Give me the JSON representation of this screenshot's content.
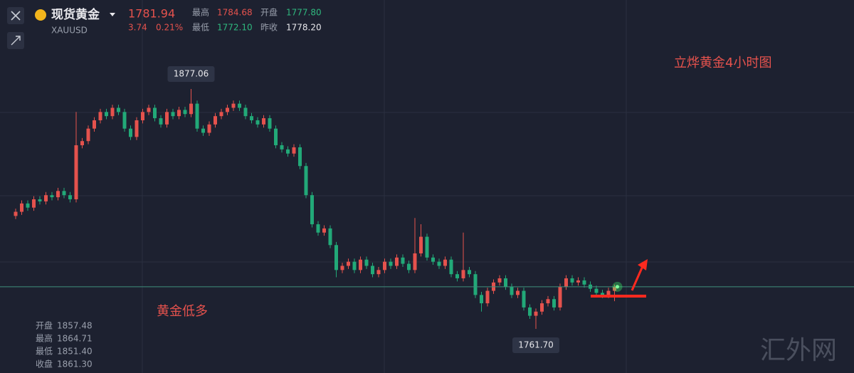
{
  "header": {
    "name": "现货黄金",
    "symbol": "XAUUSD",
    "price": "1781.94",
    "change": "3.74",
    "change_pct": "0.21%",
    "stats": [
      {
        "label": "最高",
        "value": "1784.68"
      },
      {
        "label": "开盘",
        "value": "1777.80"
      },
      {
        "label": "最低",
        "value": "1772.10"
      },
      {
        "label": "昨收",
        "value": "1778.20"
      }
    ]
  },
  "chart_data": {
    "type": "candlestick",
    "title": "立烨黄金4小时图",
    "annotation": "黄金低多",
    "up_color": "#e5524d",
    "down_color": "#22a978",
    "extreme_labels": [
      "1877.06",
      "1761.70"
    ],
    "candles": [
      [
        1816,
        1819.5,
        1814.5,
        1818
      ],
      [
        1818,
        1823.5,
        1816.5,
        1822
      ],
      [
        1822,
        1823.5,
        1818.5,
        1820
      ],
      [
        1820,
        1825.5,
        1818.5,
        1824
      ],
      [
        1824,
        1825.5,
        1821.5,
        1823
      ],
      [
        1823,
        1827.5,
        1821.5,
        1826
      ],
      [
        1826,
        1827.5,
        1823.5,
        1825
      ],
      [
        1825,
        1829.5,
        1823.5,
        1828
      ],
      [
        1828,
        1829.5,
        1824.5,
        1826
      ],
      [
        1826,
        1827.5,
        1822.5,
        1824
      ],
      [
        1824,
        1866,
        1822.5,
        1850
      ],
      [
        1850,
        1853.5,
        1848.5,
        1852
      ],
      [
        1852,
        1859.5,
        1850.5,
        1858
      ],
      [
        1858,
        1863.5,
        1856.5,
        1862
      ],
      [
        1862,
        1867.5,
        1860.5,
        1866
      ],
      [
        1866,
        1867.5,
        1862.5,
        1864
      ],
      [
        1864,
        1869.5,
        1862.5,
        1868
      ],
      [
        1868,
        1869.5,
        1864.5,
        1866
      ],
      [
        1866,
        1867.5,
        1856.5,
        1858
      ],
      [
        1858,
        1859.5,
        1852.5,
        1854
      ],
      [
        1854,
        1863.5,
        1852.5,
        1862
      ],
      [
        1862,
        1867.5,
        1860.5,
        1866
      ],
      [
        1866,
        1869.5,
        1864.5,
        1868
      ],
      [
        1868,
        1869.5,
        1861.5,
        1863
      ],
      [
        1863,
        1864.5,
        1858.5,
        1860
      ],
      [
        1860,
        1867.5,
        1858.5,
        1866
      ],
      [
        1866,
        1867.5,
        1862.5,
        1864
      ],
      [
        1864,
        1868.5,
        1862.5,
        1867
      ],
      [
        1867,
        1868.5,
        1863.5,
        1865
      ],
      [
        1865,
        1877.06,
        1863.5,
        1870
      ],
      [
        1870,
        1871.5,
        1856.5,
        1858
      ],
      [
        1858,
        1859.5,
        1854.5,
        1856
      ],
      [
        1856,
        1861.5,
        1854.5,
        1860
      ],
      [
        1860,
        1865.5,
        1858.5,
        1864
      ],
      [
        1864,
        1867.5,
        1862.5,
        1866
      ],
      [
        1866,
        1869.5,
        1864.5,
        1868
      ],
      [
        1868,
        1871.5,
        1866.5,
        1870
      ],
      [
        1870,
        1871.5,
        1866.5,
        1868
      ],
      [
        1868,
        1869.5,
        1862.5,
        1864
      ],
      [
        1864,
        1865.5,
        1860.5,
        1862
      ],
      [
        1862,
        1863.5,
        1858.5,
        1860
      ],
      [
        1860,
        1864.5,
        1858.5,
        1863
      ],
      [
        1863,
        1864.5,
        1856.5,
        1858
      ],
      [
        1858,
        1859.5,
        1848.5,
        1850
      ],
      [
        1850,
        1851.5,
        1846.5,
        1848
      ],
      [
        1848,
        1849.5,
        1844.5,
        1846
      ],
      [
        1846,
        1850.5,
        1844.5,
        1849
      ],
      [
        1849,
        1850.5,
        1838.5,
        1840
      ],
      [
        1840,
        1841.5,
        1824.5,
        1826
      ],
      [
        1826,
        1827.5,
        1810.5,
        1812
      ],
      [
        1812,
        1813.5,
        1806.5,
        1808
      ],
      [
        1808,
        1811.5,
        1806.5,
        1810
      ],
      [
        1810,
        1811.5,
        1800.5,
        1802
      ],
      [
        1802,
        1803.5,
        1786.5,
        1790
      ],
      [
        1790,
        1793.5,
        1788.5,
        1792
      ],
      [
        1792,
        1795.5,
        1790.5,
        1794
      ],
      [
        1794,
        1795.5,
        1788.5,
        1790
      ],
      [
        1790,
        1796.5,
        1788.5,
        1795
      ],
      [
        1795,
        1796.5,
        1790.5,
        1792
      ],
      [
        1792,
        1793.5,
        1786.5,
        1788
      ],
      [
        1788,
        1791.5,
        1786.5,
        1790
      ],
      [
        1790,
        1795.5,
        1788.5,
        1794
      ],
      [
        1794,
        1795.5,
        1790.5,
        1792
      ],
      [
        1792,
        1797.5,
        1790.5,
        1796
      ],
      [
        1796,
        1797.5,
        1791.5,
        1793
      ],
      [
        1793,
        1794.5,
        1788.5,
        1790
      ],
      [
        1790,
        1815,
        1788.5,
        1798
      ],
      [
        1798,
        1812,
        1796.5,
        1806
      ],
      [
        1806,
        1807.5,
        1794.5,
        1796
      ],
      [
        1796,
        1797.5,
        1792.5,
        1794
      ],
      [
        1794,
        1795.5,
        1790.5,
        1792
      ],
      [
        1792,
        1796.5,
        1790.5,
        1795
      ],
      [
        1795,
        1796.5,
        1786.5,
        1788
      ],
      [
        1788,
        1789.5,
        1784.5,
        1786
      ],
      [
        1786,
        1808,
        1784.5,
        1790
      ],
      [
        1790,
        1791.5,
        1786.5,
        1788
      ],
      [
        1788,
        1789.5,
        1776.5,
        1778
      ],
      [
        1778,
        1779.5,
        1770,
        1774
      ],
      [
        1774,
        1781.5,
        1772.5,
        1780
      ],
      [
        1780,
        1785.5,
        1778.5,
        1784
      ],
      [
        1784,
        1787.5,
        1782.5,
        1786
      ],
      [
        1786,
        1787.5,
        1780.5,
        1782
      ],
      [
        1782,
        1783.5,
        1776.5,
        1778
      ],
      [
        1778,
        1781.5,
        1776.5,
        1780
      ],
      [
        1780,
        1781.5,
        1770.5,
        1772
      ],
      [
        1772,
        1773.5,
        1766.5,
        1768
      ],
      [
        1768,
        1771.5,
        1761.7,
        1770
      ],
      [
        1770,
        1775.5,
        1768.5,
        1774
      ],
      [
        1774,
        1777.5,
        1772.5,
        1776
      ],
      [
        1776,
        1777.5,
        1770.5,
        1772
      ],
      [
        1772,
        1783.5,
        1770.5,
        1782
      ],
      [
        1782,
        1787.5,
        1780.5,
        1786
      ],
      [
        1786,
        1787.5,
        1782.5,
        1784
      ],
      [
        1784,
        1786.5,
        1782.5,
        1785
      ],
      [
        1785,
        1786.5,
        1781.5,
        1783
      ],
      [
        1783,
        1784.5,
        1779.5,
        1781
      ],
      [
        1781,
        1782.5,
        1777.5,
        1779
      ],
      [
        1779,
        1780.5,
        1776.5,
        1778
      ],
      [
        1778,
        1781.5,
        1776.5,
        1780
      ],
      [
        1780,
        1783,
        1775,
        1781.94
      ]
    ]
  },
  "hover_info": [
    {
      "label": "开盘",
      "value": "1857.48"
    },
    {
      "label": "最高",
      "value": "1864.71"
    },
    {
      "label": "最低",
      "value": "1851.40"
    },
    {
      "label": "收盘",
      "value": "1861.30"
    }
  ],
  "watermark": "汇外网"
}
